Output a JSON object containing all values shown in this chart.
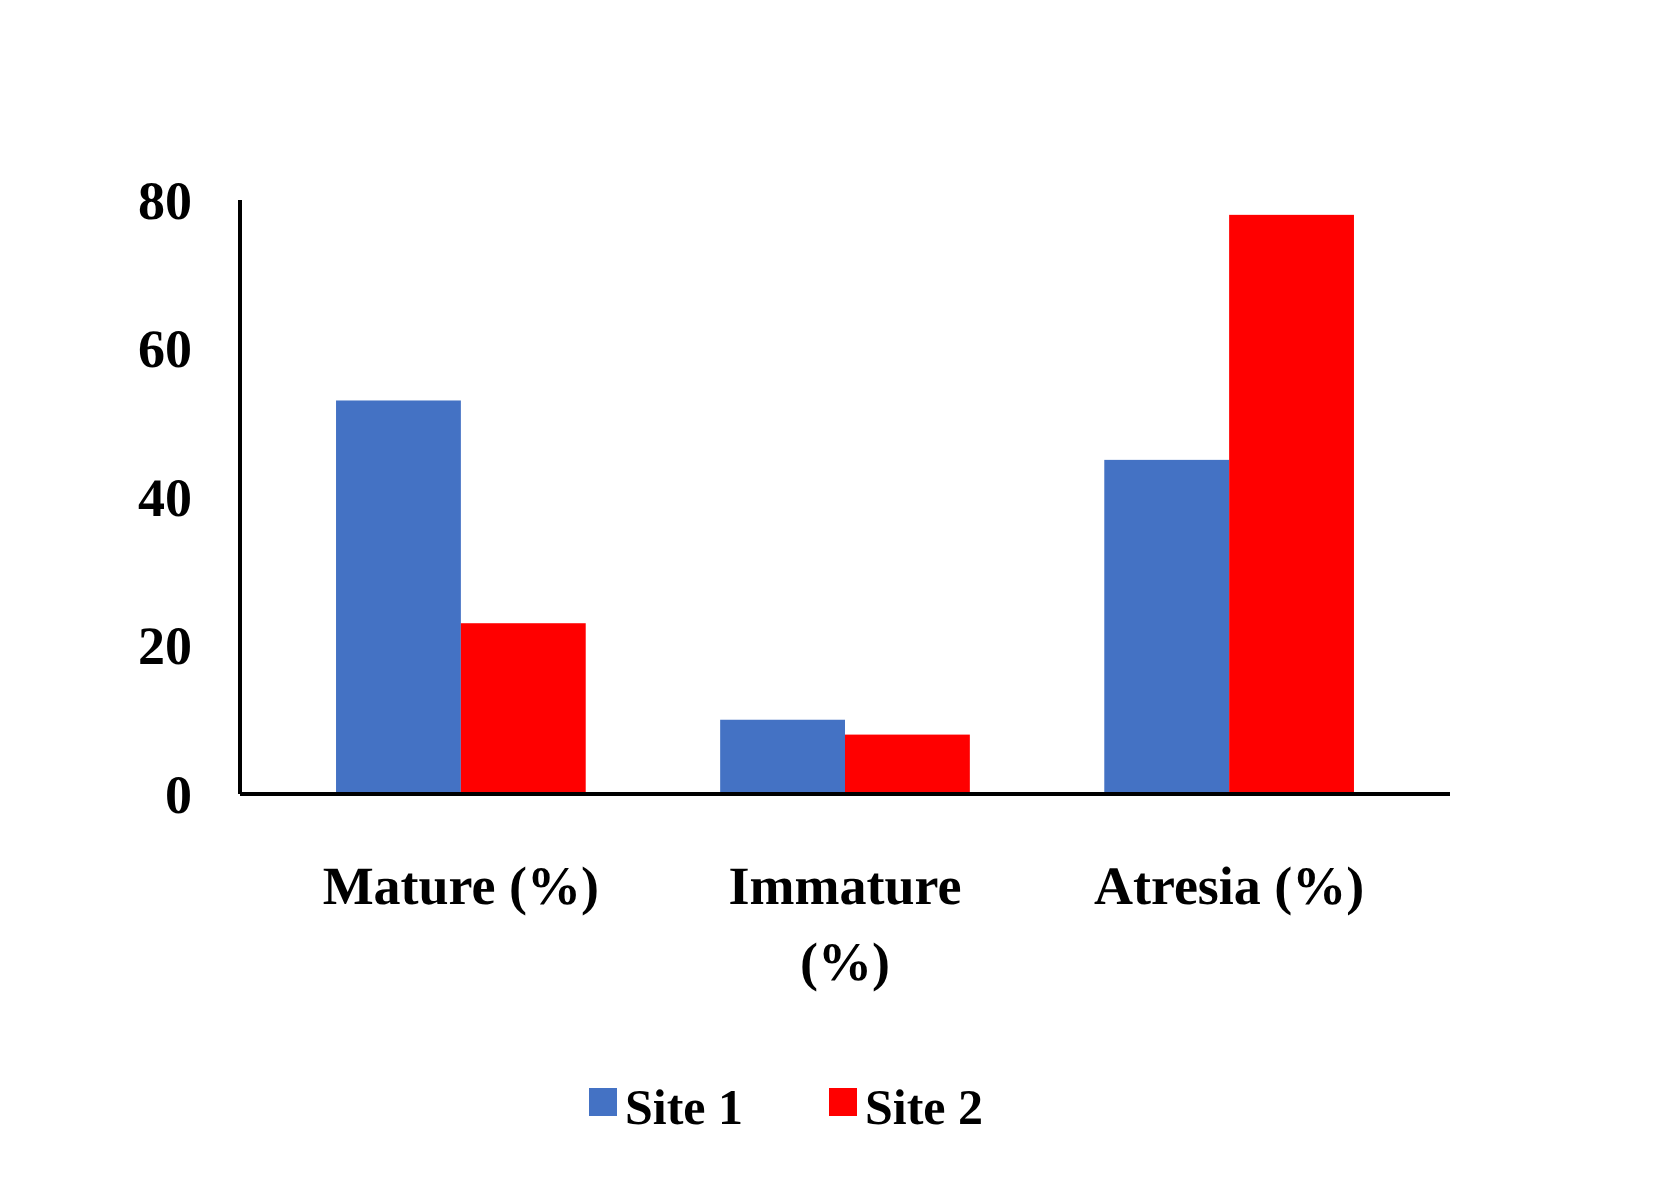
{
  "chart_data": {
    "type": "bar",
    "categories": [
      "Mature (%)",
      "Immature (%)",
      "Atresia (%)"
    ],
    "series": [
      {
        "name": "Site 1",
        "color": "#4472c4",
        "values": [
          53,
          10,
          45
        ]
      },
      {
        "name": "Site 2",
        "color": "#ff0000",
        "values": [
          23,
          8,
          78
        ]
      }
    ],
    "ylim": [
      0,
      80
    ],
    "yticks": [
      0,
      20,
      40,
      60,
      80
    ],
    "grid": false,
    "legend": "bottom"
  }
}
